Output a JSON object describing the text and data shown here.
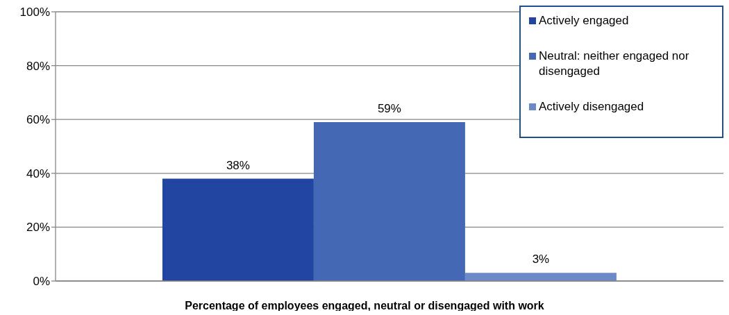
{
  "chart_data": {
    "type": "bar",
    "xlabel": "Percentage of employees engaged, neutral or disengaged with work",
    "categories": [
      null
    ],
    "series": [
      {
        "name": "Actively engaged",
        "color": "#2245a2",
        "values": [
          38
        ],
        "value_labels": [
          "38%"
        ]
      },
      {
        "name": "Neutral: neither engaged nor disengaged",
        "color": "#4468b4",
        "values": [
          59
        ],
        "value_labels": [
          "59%"
        ]
      },
      {
        "name": "Actively disengaged",
        "color": "#6c89c8",
        "values": [
          3
        ],
        "value_labels": [
          "3%"
        ]
      }
    ],
    "ylim": [
      0,
      100
    ],
    "yticks": [
      {
        "value": 0,
        "label": "0%"
      },
      {
        "value": 20,
        "label": "20%"
      },
      {
        "value": 40,
        "label": "40%"
      },
      {
        "value": 60,
        "label": "60%"
      },
      {
        "value": 80,
        "label": "80%"
      },
      {
        "value": 100,
        "label": "100%"
      }
    ],
    "grid": "y",
    "legend": "top right"
  }
}
